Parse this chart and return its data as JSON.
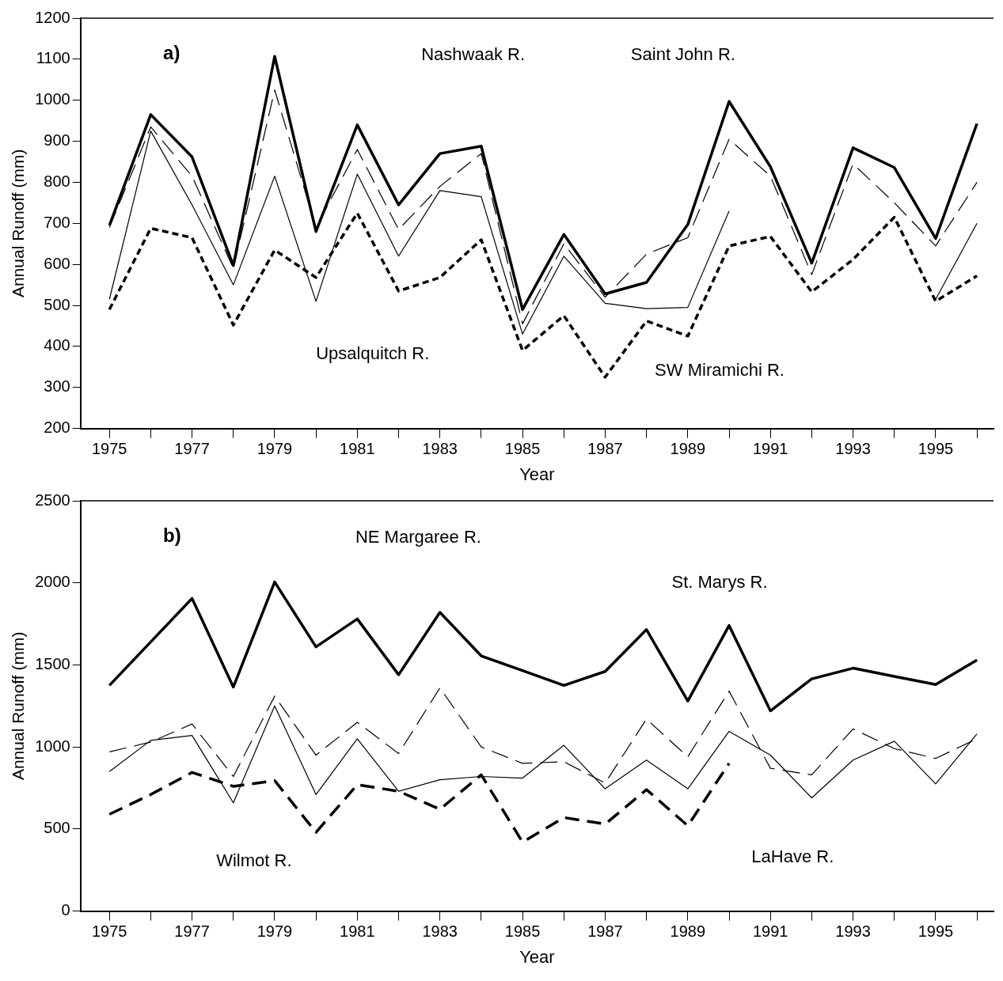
{
  "chart_data": [
    {
      "type": "line",
      "title": "a)",
      "xlabel": "Year",
      "ylabel": "Annual Runoff (mm)",
      "xlim": [
        1974.3,
        1996.4
      ],
      "xticks": [
        1975,
        {
          "value": 1976,
          "label": null
        },
        1977,
        {
          "value": 1978,
          "label": null
        },
        1979,
        {
          "value": 1980,
          "label": null
        },
        1981,
        {
          "value": 1982,
          "label": null
        },
        1983,
        {
          "value": 1984,
          "label": null
        },
        1985,
        {
          "value": 1986,
          "label": null
        },
        1987,
        {
          "value": 1988,
          "label": null
        },
        1989,
        {
          "value": 1990,
          "label": null
        },
        1991,
        {
          "value": 1992,
          "label": null
        },
        1993,
        {
          "value": 1994,
          "label": null
        },
        1995,
        {
          "value": 1996,
          "label": null
        }
      ],
      "ylim": [
        200,
        1200
      ],
      "yticks": [
        200,
        300,
        400,
        500,
        600,
        700,
        800,
        900,
        1000,
        1100,
        1200
      ],
      "x": [
        1975,
        1976,
        1977,
        1978,
        1979,
        1980,
        1981,
        1982,
        1983,
        1984,
        1985,
        1986,
        1987,
        1988,
        1989,
        1990,
        1991,
        1992,
        1993,
        1994,
        1995,
        1996
      ],
      "series": [
        {
          "color": "#000000",
          "line_style": "solid",
          "values": [
            695,
            965,
            862,
            597,
            1107,
            680,
            940,
            745,
            870,
            888,
            490,
            673,
            528,
            556,
            697,
            997,
            838,
            603,
            884,
            836,
            663,
            943
          ]
        },
        {
          "color": "#000000",
          "line_style": "dashed",
          "values": [
            690,
            935,
            815,
            590,
            1025,
            690,
            880,
            685,
            790,
            870,
            455,
            650,
            520,
            625,
            665,
            905,
            815,
            575,
            845,
            750,
            645,
            800
          ]
        },
        {
          "color": "#000000",
          "line_style": "solid",
          "values": [
            515,
            925,
            745,
            550,
            815,
            510,
            820,
            620,
            780,
            765,
            430,
            620,
            505,
            492,
            495,
            730,
            null,
            null,
            null,
            null,
            515,
            700
          ]
        },
        {
          "color": "#000000",
          "line_style": "dotted",
          "values": [
            490,
            688,
            665,
            452,
            635,
            568,
            725,
            535,
            568,
            660,
            390,
            475,
            325,
            462,
            425,
            645,
            668,
            533,
            612,
            715,
            510,
            572
          ]
        }
      ],
      "annotations": [
        "Nashwaak R.",
        "Saint John R.",
        "Upsalquitch R.",
        "SW Miramichi R."
      ],
      "grid": false,
      "legend": false,
      "marker": "none"
    },
    {
      "type": "line",
      "title": "b)",
      "xlabel": "Year",
      "ylabel": "Annual Runoff (mm)",
      "xlim": [
        1974.3,
        1996.4
      ],
      "xticks": [
        1975,
        {
          "value": 1976,
          "label": null
        },
        1977,
        {
          "value": 1978,
          "label": null
        },
        1979,
        {
          "value": 1980,
          "label": null
        },
        1981,
        {
          "value": 1982,
          "label": null
        },
        1983,
        {
          "value": 1984,
          "label": null
        },
        1985,
        {
          "value": 1986,
          "label": null
        },
        1987,
        {
          "value": 1988,
          "label": null
        },
        1989,
        {
          "value": 1990,
          "label": null
        },
        1991,
        {
          "value": 1992,
          "label": null
        },
        1993,
        {
          "value": 1994,
          "label": null
        },
        1995,
        {
          "value": 1996,
          "label": null
        }
      ],
      "ylim": [
        0,
        2500
      ],
      "yticks": [
        0,
        500,
        1000,
        1500,
        2000,
        2500
      ],
      "x": [
        1975,
        1976,
        1977,
        1978,
        1979,
        1980,
        1981,
        1982,
        1983,
        1984,
        1985,
        1986,
        1987,
        1988,
        1989,
        1990,
        1991,
        1992,
        1993,
        1994,
        1995,
        1996
      ],
      "series": [
        {
          "color": "#000000",
          "line_style": "solid",
          "values": [
            1375,
            1640,
            1905,
            1365,
            2005,
            1610,
            1780,
            1440,
            1820,
            1555,
            1465,
            1375,
            1460,
            1715,
            1280,
            1740,
            1220,
            1415,
            1480,
            1430,
            1380,
            1530
          ]
        },
        {
          "color": "#000000",
          "line_style": "dashed",
          "values": [
            970,
            1030,
            1140,
            820,
            1310,
            950,
            1150,
            960,
            1360,
            1000,
            900,
            910,
            780,
            1170,
            940,
            1340,
            870,
            830,
            1110,
            990,
            930,
            1050
          ]
        },
        {
          "color": "#000000",
          "line_style": "solid",
          "values": [
            850,
            1040,
            1070,
            660,
            1250,
            710,
            1050,
            730,
            800,
            820,
            810,
            1010,
            745,
            920,
            745,
            1095,
            950,
            690,
            920,
            1035,
            775,
            1080
          ]
        },
        {
          "color": "#000000",
          "line_style": "dashed",
          "values": [
            590,
            710,
            845,
            760,
            795,
            480,
            770,
            730,
            620,
            830,
            420,
            570,
            530,
            740,
            520,
            900,
            null,
            null,
            null,
            null,
            null,
            null
          ]
        }
      ],
      "annotations": [
        "NE Margaree R.",
        "St. Marys R.",
        "Wilmot R.",
        "LaHave R."
      ],
      "grid": false,
      "legend": false,
      "marker": "none"
    }
  ]
}
